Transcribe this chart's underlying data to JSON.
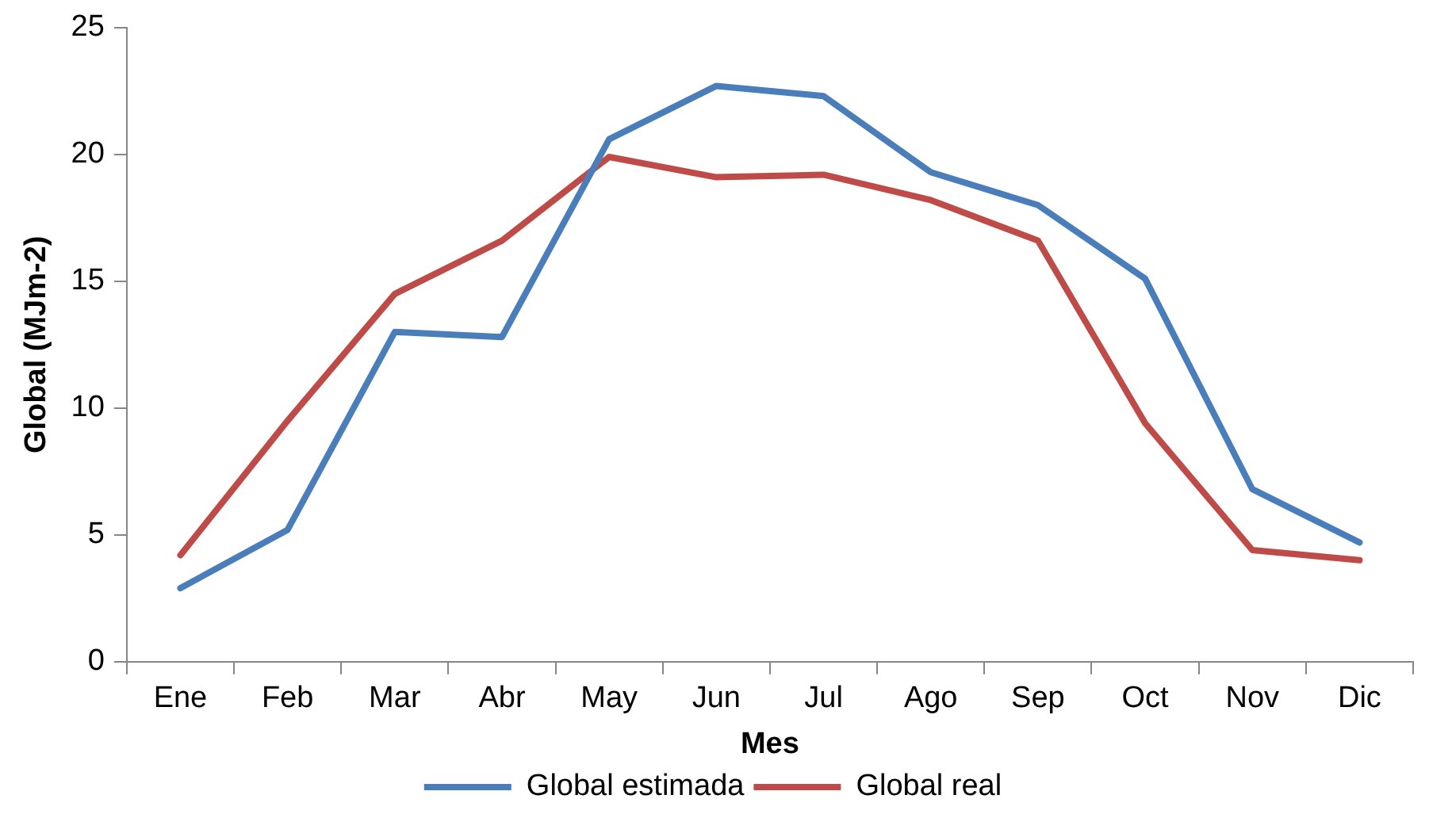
{
  "chart_data": {
    "type": "line",
    "xlabel": "Mes",
    "ylabel": "Global (MJm-2)",
    "categories": [
      "Ene",
      "Feb",
      "Mar",
      "Abr",
      "May",
      "Jun",
      "Jul",
      "Ago",
      "Sep",
      "Oct",
      "Nov",
      "Dic"
    ],
    "series": [
      {
        "name": "Global estimada",
        "color": "#4a7ebb",
        "values": [
          2.9,
          5.2,
          13.0,
          12.8,
          20.6,
          22.7,
          22.3,
          19.3,
          18.0,
          15.1,
          6.8,
          4.7
        ]
      },
      {
        "name": "Global real",
        "color": "#be4b48",
        "values": [
          4.2,
          9.5,
          14.5,
          16.6,
          19.9,
          19.1,
          19.2,
          18.2,
          16.6,
          9.4,
          4.4,
          4.0
        ]
      }
    ],
    "ylim": [
      0,
      25
    ],
    "yticks": [
      0,
      5,
      10,
      15,
      20,
      25
    ],
    "grid": false,
    "legend": "bottom",
    "marker": "none",
    "line_style": "solid"
  }
}
